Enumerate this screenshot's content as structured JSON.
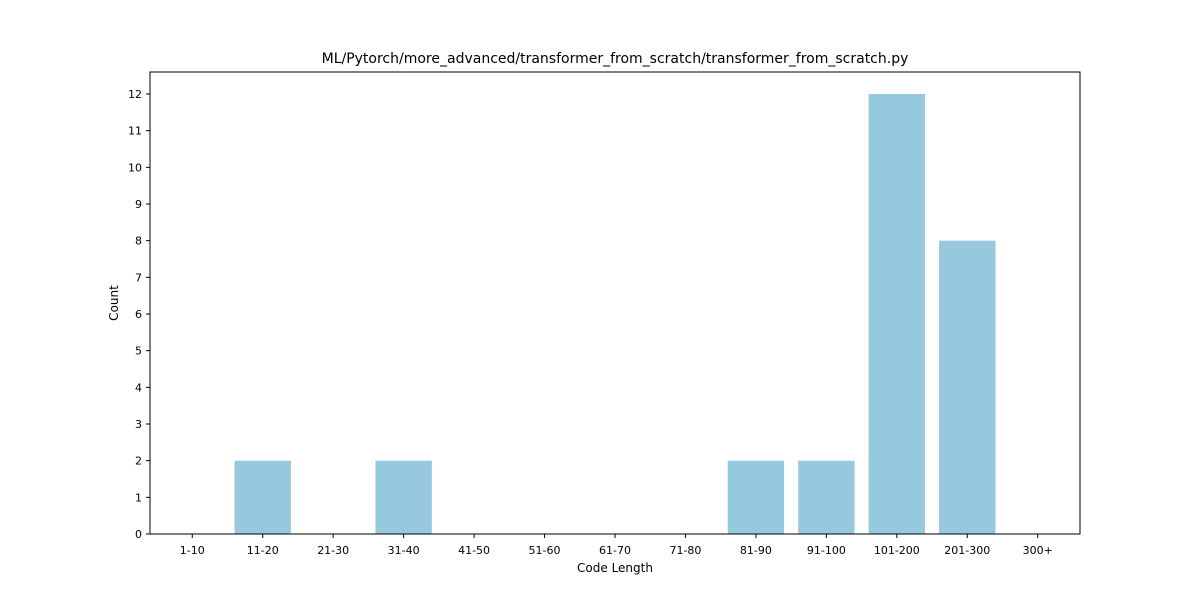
{
  "chart_data": {
    "type": "bar",
    "title": "ML/Pytorch/more_advanced/transformer_from_scratch/transformer_from_scratch.py",
    "xlabel": "Code Length",
    "ylabel": "Count",
    "categories": [
      "1-10",
      "11-20",
      "21-30",
      "31-40",
      "41-50",
      "51-60",
      "61-70",
      "71-80",
      "81-90",
      "91-100",
      "101-200",
      "201-300",
      "300+"
    ],
    "values": [
      0,
      2,
      0,
      2,
      0,
      0,
      0,
      0,
      2,
      2,
      12,
      8,
      0
    ],
    "ylim": [
      0,
      12.6
    ],
    "yticks": [
      "0",
      "1",
      "2",
      "3",
      "4",
      "5",
      "6",
      "7",
      "8",
      "9",
      "10",
      "11",
      "12"
    ],
    "bar_color": "#96c9de",
    "grid": false,
    "legend": "none"
  }
}
